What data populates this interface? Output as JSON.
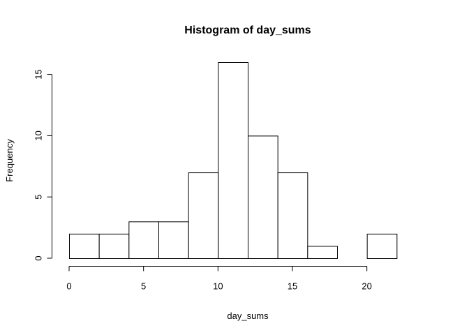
{
  "chart_data": {
    "type": "bar",
    "subtype": "histogram",
    "title": "Histogram of day_sums",
    "xlabel": "day_sums",
    "ylabel": "Frequency",
    "bin_edges": [
      0,
      2,
      4,
      6,
      8,
      10,
      12,
      14,
      16,
      18,
      20,
      22
    ],
    "values": [
      2,
      2,
      3,
      3,
      7,
      16,
      10,
      7,
      1,
      0,
      2
    ],
    "x_ticks": [
      0,
      5,
      10,
      15,
      20
    ],
    "y_ticks": [
      0,
      5,
      10,
      15
    ],
    "xlim": [
      0,
      24
    ],
    "ylim": [
      0,
      16
    ],
    "grid": false,
    "legend": "none",
    "bar_fill": "#ffffff",
    "bar_stroke": "#000000"
  }
}
